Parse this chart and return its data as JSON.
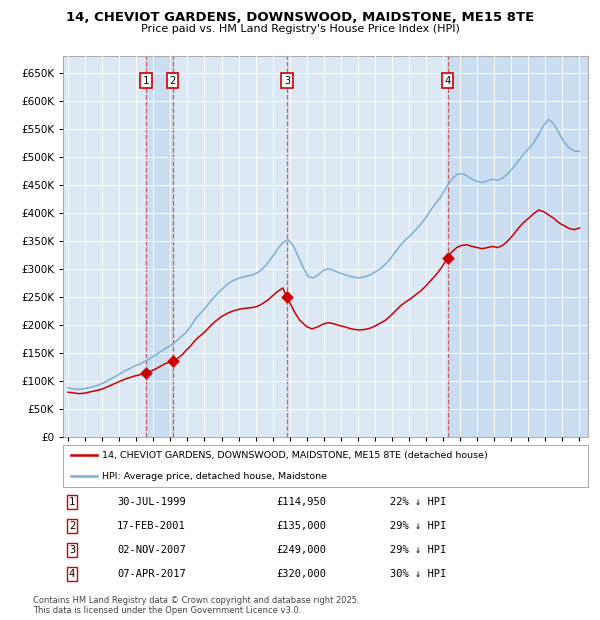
{
  "title": "14, CHEVIOT GARDENS, DOWNSWOOD, MAIDSTONE, ME15 8TE",
  "subtitle": "Price paid vs. HM Land Registry's House Price Index (HPI)",
  "bg_color": "#dce9f5",
  "hpi_color": "#7bafd4",
  "price_color": "#cc0000",
  "ylim": [
    0,
    680000
  ],
  "yticks": [
    0,
    50000,
    100000,
    150000,
    200000,
    250000,
    300000,
    350000,
    400000,
    450000,
    500000,
    550000,
    600000,
    650000
  ],
  "sale_dates_num": [
    1999.575,
    2001.13,
    2007.84,
    2017.27
  ],
  "sale_prices": [
    114950,
    135000,
    249000,
    320000
  ],
  "sale_labels": [
    "1",
    "2",
    "3",
    "4"
  ],
  "hpi_data": [
    [
      1995.0,
      88000
    ],
    [
      1995.3,
      86000
    ],
    [
      1995.6,
      85000
    ],
    [
      1995.9,
      86000
    ],
    [
      1996.2,
      88000
    ],
    [
      1996.5,
      90000
    ],
    [
      1996.8,
      93000
    ],
    [
      1997.1,
      97000
    ],
    [
      1997.4,
      102000
    ],
    [
      1997.7,
      107000
    ],
    [
      1998.0,
      112000
    ],
    [
      1998.3,
      118000
    ],
    [
      1998.6,
      122000
    ],
    [
      1998.9,
      127000
    ],
    [
      1999.2,
      130000
    ],
    [
      1999.5,
      135000
    ],
    [
      1999.8,
      140000
    ],
    [
      2000.1,
      146000
    ],
    [
      2000.4,
      152000
    ],
    [
      2000.7,
      158000
    ],
    [
      2001.0,
      163000
    ],
    [
      2001.3,
      170000
    ],
    [
      2001.6,
      178000
    ],
    [
      2001.9,
      186000
    ],
    [
      2002.2,
      198000
    ],
    [
      2002.5,
      212000
    ],
    [
      2002.8,
      222000
    ],
    [
      2003.1,
      232000
    ],
    [
      2003.4,
      244000
    ],
    [
      2003.7,
      254000
    ],
    [
      2004.0,
      263000
    ],
    [
      2004.3,
      272000
    ],
    [
      2004.6,
      278000
    ],
    [
      2004.9,
      282000
    ],
    [
      2005.2,
      285000
    ],
    [
      2005.5,
      287000
    ],
    [
      2005.8,
      289000
    ],
    [
      2006.1,
      293000
    ],
    [
      2006.4,
      300000
    ],
    [
      2006.7,
      310000
    ],
    [
      2007.0,
      322000
    ],
    [
      2007.3,
      336000
    ],
    [
      2007.6,
      347000
    ],
    [
      2007.9,
      352000
    ],
    [
      2008.2,
      342000
    ],
    [
      2008.5,
      322000
    ],
    [
      2008.8,
      302000
    ],
    [
      2009.1,
      286000
    ],
    [
      2009.4,
      284000
    ],
    [
      2009.7,
      290000
    ],
    [
      2010.0,
      298000
    ],
    [
      2010.3,
      300000
    ],
    [
      2010.6,
      297000
    ],
    [
      2010.9,
      293000
    ],
    [
      2011.2,
      290000
    ],
    [
      2011.5,
      287000
    ],
    [
      2011.8,
      285000
    ],
    [
      2012.1,
      284000
    ],
    [
      2012.4,
      286000
    ],
    [
      2012.7,
      289000
    ],
    [
      2013.0,
      294000
    ],
    [
      2013.3,
      300000
    ],
    [
      2013.6,
      308000
    ],
    [
      2013.9,
      318000
    ],
    [
      2014.2,
      330000
    ],
    [
      2014.5,
      342000
    ],
    [
      2014.8,
      352000
    ],
    [
      2015.1,
      360000
    ],
    [
      2015.4,
      370000
    ],
    [
      2015.7,
      380000
    ],
    [
      2016.0,
      392000
    ],
    [
      2016.3,
      406000
    ],
    [
      2016.6,
      418000
    ],
    [
      2016.9,
      430000
    ],
    [
      2017.2,
      446000
    ],
    [
      2017.5,
      460000
    ],
    [
      2017.8,
      468000
    ],
    [
      2018.1,
      470000
    ],
    [
      2018.4,
      466000
    ],
    [
      2018.7,
      460000
    ],
    [
      2019.0,
      456000
    ],
    [
      2019.3,
      454000
    ],
    [
      2019.6,
      457000
    ],
    [
      2019.9,
      460000
    ],
    [
      2020.2,
      458000
    ],
    [
      2020.5,
      462000
    ],
    [
      2020.8,
      470000
    ],
    [
      2021.1,
      480000
    ],
    [
      2021.4,
      492000
    ],
    [
      2021.7,
      504000
    ],
    [
      2022.0,
      514000
    ],
    [
      2022.3,
      524000
    ],
    [
      2022.6,
      540000
    ],
    [
      2022.9,
      556000
    ],
    [
      2023.2,
      567000
    ],
    [
      2023.5,
      558000
    ],
    [
      2023.8,
      542000
    ],
    [
      2024.1,
      526000
    ],
    [
      2024.4,
      516000
    ],
    [
      2024.7,
      510000
    ],
    [
      2025.0,
      510000
    ]
  ],
  "price_data": [
    [
      1995.0,
      80000
    ],
    [
      1995.3,
      79000
    ],
    [
      1995.6,
      77500
    ],
    [
      1995.9,
      78000
    ],
    [
      1996.2,
      80000
    ],
    [
      1996.5,
      82000
    ],
    [
      1996.8,
      84000
    ],
    [
      1997.1,
      87000
    ],
    [
      1997.4,
      91000
    ],
    [
      1997.7,
      95000
    ],
    [
      1998.0,
      99000
    ],
    [
      1998.3,
      103000
    ],
    [
      1998.6,
      106000
    ],
    [
      1998.9,
      109000
    ],
    [
      1999.2,
      111000
    ],
    [
      1999.575,
      114950
    ],
    [
      1999.8,
      117000
    ],
    [
      2000.1,
      121000
    ],
    [
      2000.4,
      126000
    ],
    [
      2000.7,
      131000
    ],
    [
      2001.13,
      135000
    ],
    [
      2001.4,
      140000
    ],
    [
      2001.7,
      147000
    ],
    [
      2001.9,
      154000
    ],
    [
      2002.2,
      163000
    ],
    [
      2002.5,
      174000
    ],
    [
      2002.8,
      182000
    ],
    [
      2003.1,
      190000
    ],
    [
      2003.4,
      200000
    ],
    [
      2003.7,
      208000
    ],
    [
      2004.0,
      215000
    ],
    [
      2004.3,
      220000
    ],
    [
      2004.6,
      224000
    ],
    [
      2004.9,
      227000
    ],
    [
      2005.2,
      229000
    ],
    [
      2005.5,
      230000
    ],
    [
      2005.8,
      231000
    ],
    [
      2006.1,
      233000
    ],
    [
      2006.4,
      238000
    ],
    [
      2006.7,
      244000
    ],
    [
      2007.0,
      252000
    ],
    [
      2007.3,
      260000
    ],
    [
      2007.6,
      266000
    ],
    [
      2007.84,
      249000
    ],
    [
      2008.0,
      240000
    ],
    [
      2008.3,
      222000
    ],
    [
      2008.6,
      208000
    ],
    [
      2009.0,
      197000
    ],
    [
      2009.3,
      193000
    ],
    [
      2009.6,
      196000
    ],
    [
      2010.0,
      202000
    ],
    [
      2010.3,
      204000
    ],
    [
      2010.6,
      202000
    ],
    [
      2010.9,
      199000
    ],
    [
      2011.2,
      197000
    ],
    [
      2011.5,
      194000
    ],
    [
      2011.8,
      192000
    ],
    [
      2012.1,
      191000
    ],
    [
      2012.4,
      192000
    ],
    [
      2012.7,
      194000
    ],
    [
      2013.0,
      198000
    ],
    [
      2013.3,
      203000
    ],
    [
      2013.6,
      208000
    ],
    [
      2013.9,
      216000
    ],
    [
      2014.2,
      225000
    ],
    [
      2014.5,
      234000
    ],
    [
      2014.8,
      241000
    ],
    [
      2015.1,
      247000
    ],
    [
      2015.4,
      254000
    ],
    [
      2015.7,
      261000
    ],
    [
      2016.0,
      270000
    ],
    [
      2016.3,
      280000
    ],
    [
      2016.6,
      290000
    ],
    [
      2016.9,
      302000
    ],
    [
      2017.27,
      320000
    ],
    [
      2017.5,
      330000
    ],
    [
      2017.8,
      338000
    ],
    [
      2018.1,
      342000
    ],
    [
      2018.4,
      343000
    ],
    [
      2018.7,
      340000
    ],
    [
      2019.0,
      338000
    ],
    [
      2019.3,
      336000
    ],
    [
      2019.6,
      338000
    ],
    [
      2019.9,
      340000
    ],
    [
      2020.2,
      338000
    ],
    [
      2020.5,
      342000
    ],
    [
      2020.8,
      350000
    ],
    [
      2021.1,
      360000
    ],
    [
      2021.4,
      372000
    ],
    [
      2021.7,
      382000
    ],
    [
      2022.0,
      390000
    ],
    [
      2022.3,
      398000
    ],
    [
      2022.6,
      405000
    ],
    [
      2022.9,
      402000
    ],
    [
      2023.2,
      396000
    ],
    [
      2023.5,
      390000
    ],
    [
      2023.8,
      382000
    ],
    [
      2024.1,
      377000
    ],
    [
      2024.4,
      372000
    ],
    [
      2024.7,
      370000
    ],
    [
      2025.0,
      373000
    ]
  ],
  "table_data": [
    [
      "1",
      "30-JUL-1999",
      "£114,950",
      "22% ↓ HPI"
    ],
    [
      "2",
      "17-FEB-2001",
      "£135,000",
      "29% ↓ HPI"
    ],
    [
      "3",
      "02-NOV-2007",
      "£249,000",
      "29% ↓ HPI"
    ],
    [
      "4",
      "07-APR-2017",
      "£320,000",
      "30% ↓ HPI"
    ]
  ],
  "legend_line1": "14, CHEVIOT GARDENS, DOWNSWOOD, MAIDSTONE, ME15 8TE (detached house)",
  "legend_line2": "HPI: Average price, detached house, Maidstone",
  "footer": "Contains HM Land Registry data © Crown copyright and database right 2025.\nThis data is licensed under the Open Government Licence v3.0."
}
